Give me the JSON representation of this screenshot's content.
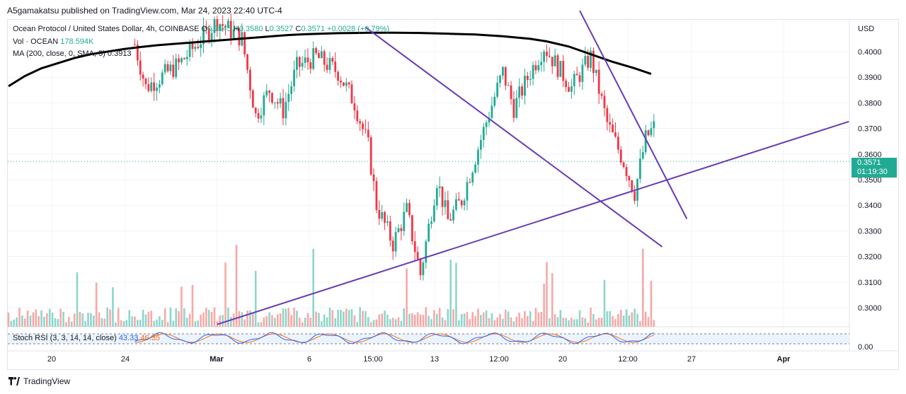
{
  "publisher_line": "A5gamakatsu published on TradingView.com, Mar 24, 2023 22:40 UTC-4",
  "footer": {
    "brand": "TradingView",
    "logo_icon": "tradingview-logo-icon"
  },
  "legend": {
    "symbol": "Ocean Protocol / United States Dollar, 4h, COINBASE",
    "o_label": "O",
    "o_value": "0.3545",
    "h_label": "H",
    "h_value": "0.3580",
    "l_label": "L",
    "l_value": "0.3527",
    "c_label": "C",
    "c_value": "0.3571",
    "change": "+0.0028 (+0.79%)",
    "vol_label": "Vol · OCEAN",
    "vol_value": "178.594K",
    "ma_label": "MA (200, close, 0, SMA, 5)",
    "ma_value": "0.3913"
  },
  "rsi_legend": {
    "label": "Stoch RSI (3, 3, 14, 14, close)",
    "k_value": "43.33",
    "d_value": "46.35"
  },
  "price_tag": {
    "price": "0.3571",
    "countdown": "01:19:30"
  },
  "colors": {
    "up": "#22ab94",
    "down": "#f23645",
    "up_vol": "#8fd5ca",
    "down_vol": "#f7a9a7",
    "trendline": "#673ab7",
    "ma": "#000000",
    "rsi_k": "#2962ff",
    "rsi_d": "#ff6d00"
  },
  "chart_data": {
    "type": "candlestick",
    "y_axis": {
      "currency": "USD",
      "ticks": [
        "0.4000",
        "0.3900",
        "0.3800",
        "0.3700",
        "0.3600",
        "0.3500",
        "0.3400",
        "0.3300",
        "0.3200",
        "0.3100",
        "0.3000"
      ],
      "range": [
        0.293,
        0.41
      ]
    },
    "x_axis": {
      "ticks": [
        "20",
        "24",
        "Mar",
        "6",
        "15:00",
        "13",
        "12:00",
        "20",
        "12:00",
        "27",
        "Apr"
      ]
    },
    "rsi_axis": {
      "ticks": [
        "0.00"
      ]
    },
    "last_price": 0.3571,
    "ma_200": [
      {
        "t": 0,
        "v": 0.3865
      },
      {
        "t": 6,
        "v": 0.3905
      },
      {
        "t": 12,
        "v": 0.3935
      },
      {
        "t": 18,
        "v": 0.3955
      },
      {
        "t": 24,
        "v": 0.3975
      },
      {
        "t": 30,
        "v": 0.399
      },
      {
        "t": 36,
        "v": 0.4
      },
      {
        "t": 42,
        "v": 0.401
      },
      {
        "t": 48,
        "v": 0.4018
      },
      {
        "t": 54,
        "v": 0.4025
      },
      {
        "t": 60,
        "v": 0.403
      },
      {
        "t": 66,
        "v": 0.4035
      },
      {
        "t": 72,
        "v": 0.404
      },
      {
        "t": 78,
        "v": 0.4045
      },
      {
        "t": 84,
        "v": 0.405
      },
      {
        "t": 90,
        "v": 0.4055
      },
      {
        "t": 96,
        "v": 0.406
      },
      {
        "t": 102,
        "v": 0.4065
      },
      {
        "t": 108,
        "v": 0.4068
      },
      {
        "t": 114,
        "v": 0.407
      },
      {
        "t": 120,
        "v": 0.4072
      },
      {
        "t": 126,
        "v": 0.4073
      },
      {
        "t": 132,
        "v": 0.4074
      },
      {
        "t": 140,
        "v": 0.4074
      },
      {
        "t": 150,
        "v": 0.4073
      },
      {
        "t": 160,
        "v": 0.407
      },
      {
        "t": 170,
        "v": 0.4067
      },
      {
        "t": 180,
        "v": 0.406
      },
      {
        "t": 190,
        "v": 0.405
      },
      {
        "t": 196,
        "v": 0.404
      },
      {
        "t": 204,
        "v": 0.402
      },
      {
        "t": 212,
        "v": 0.399
      },
      {
        "t": 220,
        "v": 0.396
      },
      {
        "t": 228,
        "v": 0.3935
      },
      {
        "t": 234,
        "v": 0.3913
      }
    ],
    "trendlines": [
      {
        "name": "support",
        "points": [
          {
            "t": 76,
            "v": 0.2935
          },
          {
            "t": 306,
            "v": 0.3727
          }
        ]
      },
      {
        "name": "upper-resistance",
        "points": [
          {
            "t": 208,
            "v": 0.416
          },
          {
            "t": 247,
            "v": 0.3347
          }
        ]
      },
      {
        "name": "lower-resistance",
        "points": [
          {
            "t": 130,
            "v": 0.4095
          },
          {
            "t": 238,
            "v": 0.3238
          }
        ]
      }
    ]
  }
}
